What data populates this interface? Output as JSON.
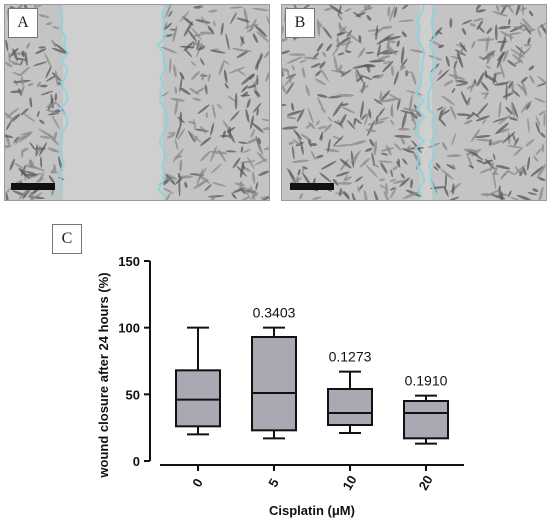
{
  "panels": {
    "a": {
      "label": "A"
    },
    "b": {
      "label": "B"
    },
    "c": {
      "label": "C"
    }
  },
  "colors": {
    "box_fill": "#a9a9b3",
    "wound_edge": "#8fd3dc",
    "micro_bg": "#c4c4c4",
    "cell": "#5a5a5a"
  },
  "chart_data": {
    "type": "box",
    "categories": [
      "0",
      "5",
      "10",
      "20"
    ],
    "xlabel": "Cisplatin (μM)",
    "ylabel": "wound closure after 24 hours (%)",
    "ylim": [
      0,
      150
    ],
    "yticks": [
      0,
      50,
      100,
      150
    ],
    "boxes": [
      {
        "min": 20,
        "q1": 26,
        "median": 46,
        "q3": 68,
        "max": 100,
        "annotation": ""
      },
      {
        "min": 17,
        "q1": 23,
        "median": 51,
        "q3": 93,
        "max": 100,
        "annotation": "0.3403"
      },
      {
        "min": 21,
        "q1": 27,
        "median": 36,
        "q3": 54,
        "max": 67,
        "annotation": "0.1273"
      },
      {
        "min": 13,
        "q1": 17,
        "median": 36,
        "q3": 45,
        "max": 49,
        "annotation": "0.1910"
      }
    ],
    "grid": false
  }
}
